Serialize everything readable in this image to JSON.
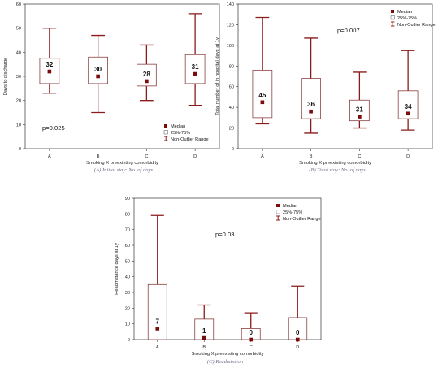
{
  "colors": {
    "whisker": "#8b1a1a",
    "median": "#7a0c0c",
    "box_stroke": "#8b4040",
    "axis": "#333333",
    "caption": "#6a6a8a"
  },
  "chart_data": [
    {
      "type": "box",
      "caption": "(A) Initial stay: No. of days",
      "xlabel": "Smoking X preexisting comorbidity",
      "ylabel": "Days to discharge",
      "ylim": [
        0,
        60
      ],
      "yticks": [
        "0",
        "10",
        "20",
        "30",
        "40",
        "50",
        "60"
      ],
      "pvalue": "p=0.025",
      "legend": {
        "position": "bottom-right",
        "median": "Median",
        "box": "25%-75%",
        "range": "Non-Outlier Range"
      },
      "categories": [
        "A",
        "B",
        "C",
        "D"
      ],
      "boxes": [
        {
          "median": 32,
          "label": "32",
          "q1": 27,
          "q3": 37.5,
          "min": 23,
          "max": 50
        },
        {
          "median": 30,
          "label": "30",
          "q1": 27,
          "q3": 38,
          "min": 15,
          "max": 47
        },
        {
          "median": 28,
          "label": "28",
          "q1": 26,
          "q3": 35,
          "min": 20,
          "max": 43
        },
        {
          "median": 31,
          "label": "31",
          "q1": 27,
          "q3": 39,
          "min": 18,
          "max": 56
        }
      ]
    },
    {
      "type": "box",
      "caption": "(B) Total stay: No. of days",
      "xlabel": "Smoking X preexisting comorbidity",
      "ylabel": "Total number of in hospital days at 1y",
      "ylim": [
        0,
        140
      ],
      "yticks": [
        "0",
        "20",
        "40",
        "60",
        "80",
        "100",
        "120",
        "140"
      ],
      "pvalue": "p=0.007",
      "legend": {
        "position": "top-right",
        "median": "Median",
        "box": "25%-75%",
        "range": "Non-Outlier Range"
      },
      "categories": [
        "A",
        "B",
        "C",
        "D"
      ],
      "boxes": [
        {
          "median": 45,
          "label": "45",
          "q1": 30,
          "q3": 76,
          "min": 24,
          "max": 127
        },
        {
          "median": 36,
          "label": "36",
          "q1": 29,
          "q3": 68,
          "min": 15,
          "max": 107
        },
        {
          "median": 31,
          "label": "31",
          "q1": 27,
          "q3": 47,
          "min": 20,
          "max": 74
        },
        {
          "median": 34,
          "label": "34",
          "q1": 29,
          "q3": 56,
          "min": 18,
          "max": 95
        }
      ]
    },
    {
      "type": "box",
      "caption": "(C) Readmission",
      "xlabel": "Smoking X preexisting comorbidity",
      "ylabel": "Readmittance days at 1y",
      "ylim": [
        0,
        90
      ],
      "yticks": [
        "0",
        "10",
        "20",
        "30",
        "40",
        "50",
        "60",
        "70",
        "80",
        "90"
      ],
      "pvalue": "p=0.03",
      "legend": {
        "position": "top-right",
        "median": "Median",
        "box": "25%-75%",
        "range": "Non-Outlier Range"
      },
      "categories": [
        "A",
        "B",
        "C",
        "D"
      ],
      "boxes": [
        {
          "median": 7,
          "label": "7",
          "q1": 0,
          "q3": 35,
          "min": 0,
          "max": 79
        },
        {
          "median": 1,
          "label": "1",
          "q1": 0,
          "q3": 13,
          "min": 0,
          "max": 22
        },
        {
          "median": 0,
          "label": "0",
          "q1": 0,
          "q3": 7,
          "min": 0,
          "max": 17
        },
        {
          "median": 0,
          "label": "0",
          "q1": 0,
          "q3": 14,
          "min": 0,
          "max": 34
        }
      ]
    }
  ]
}
